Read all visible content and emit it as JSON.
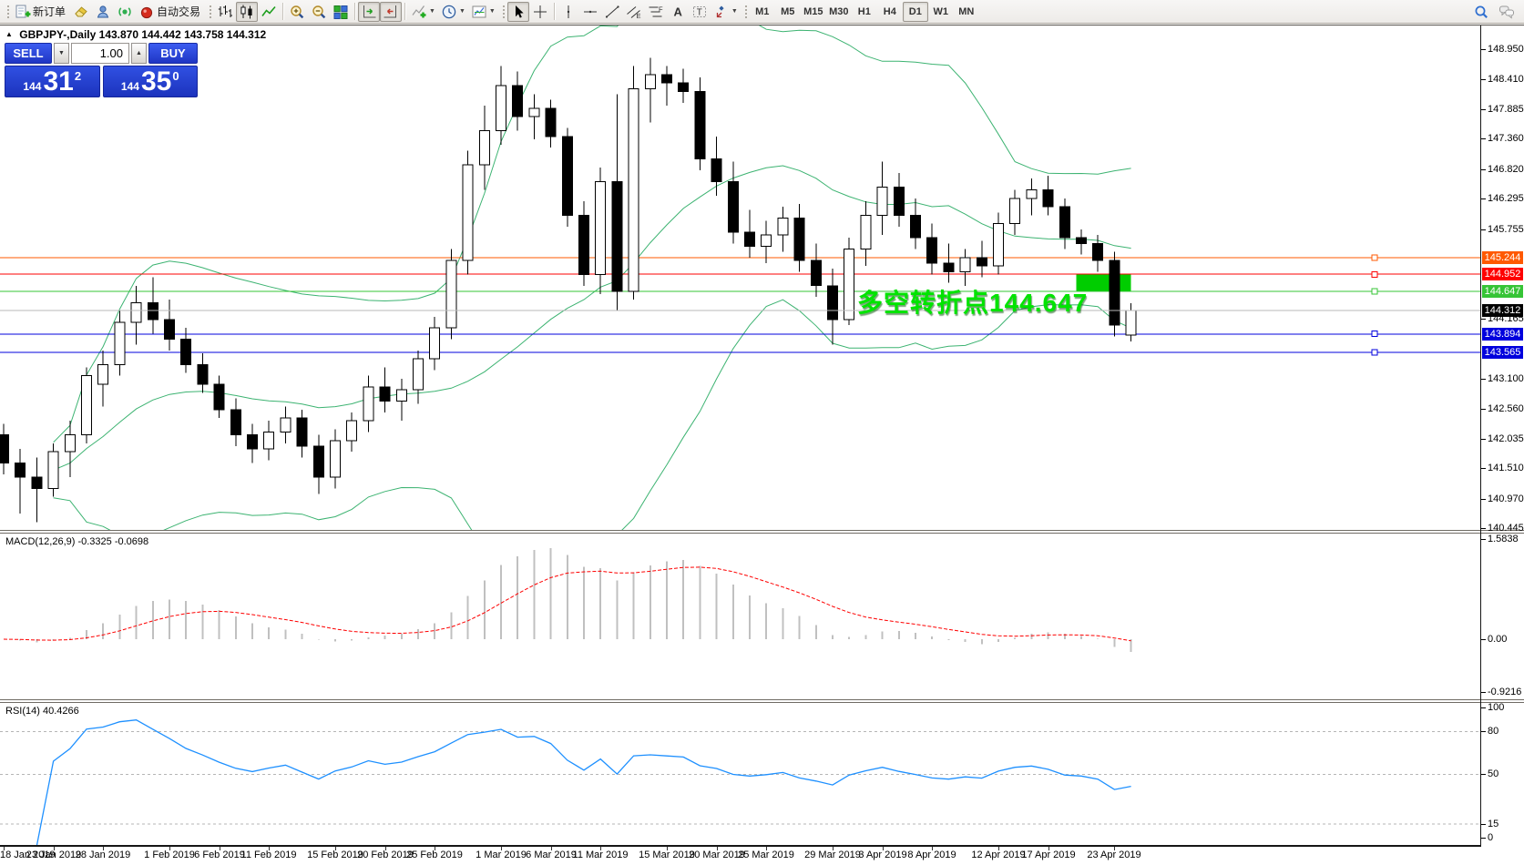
{
  "toolbar": {
    "groups": [
      {
        "grip": true,
        "items": [
          {
            "name": "new-order-button",
            "icon": "new-order",
            "label": "新订单"
          },
          {
            "name": "eraser-button",
            "icon": "eraser"
          },
          {
            "name": "profile-button",
            "icon": "profile"
          },
          {
            "name": "signals-button",
            "icon": "signal"
          },
          {
            "name": "auto-trading-button",
            "icon": "auto-trading",
            "label": "自动交易"
          }
        ]
      },
      {
        "grip": true,
        "items": [
          {
            "name": "bar-chart-button",
            "icon": "bar-chart"
          },
          {
            "name": "candlestick-chart-button",
            "icon": "candles",
            "pressed": true
          },
          {
            "name": "line-chart-button",
            "icon": "line"
          }
        ]
      },
      {
        "sep": true,
        "items": [
          {
            "name": "zoom-in-button",
            "icon": "zoom-in"
          },
          {
            "name": "zoom-out-button",
            "icon": "zoom-out"
          },
          {
            "name": "tile-windows-button",
            "icon": "tile"
          }
        ]
      },
      {
        "sep": true,
        "items": [
          {
            "name": "auto-scroll-button",
            "icon": "auto-scroll",
            "pressed": true
          },
          {
            "name": "chart-shift-button",
            "icon": "chart-shift",
            "pressed": true
          }
        ]
      },
      {
        "sep": true,
        "items": [
          {
            "name": "indicators-button",
            "icon": "indicators",
            "dropdown": true
          },
          {
            "name": "periods-button",
            "icon": "clock",
            "dropdown": true
          },
          {
            "name": "templates-button",
            "icon": "template",
            "dropdown": true
          }
        ]
      },
      {
        "grip": true,
        "items": [
          {
            "name": "cursor-button",
            "icon": "cursor",
            "pressed": true
          },
          {
            "name": "crosshair-button",
            "icon": "crosshair"
          }
        ]
      },
      {
        "sep": true,
        "items": [
          {
            "name": "vertical-line-button",
            "icon": "vline"
          },
          {
            "name": "horizontal-line-button",
            "icon": "hline"
          },
          {
            "name": "trendline-button",
            "icon": "trendline"
          },
          {
            "name": "equidistant-channel-button",
            "icon": "channel"
          },
          {
            "name": "fibonacci-button",
            "icon": "fibo"
          },
          {
            "name": "text-button",
            "icon": "text-a"
          },
          {
            "name": "text-label-button",
            "icon": "text-t"
          },
          {
            "name": "arrows-button",
            "icon": "arrows",
            "dropdown": true
          }
        ]
      },
      {
        "grip": true,
        "timeframes": true
      }
    ],
    "timeframes": [
      "M1",
      "M5",
      "M15",
      "M30",
      "H1",
      "H4",
      "D1",
      "W1",
      "MN"
    ],
    "active_timeframe": "D1",
    "right_items": [
      {
        "name": "search-button",
        "icon": "search"
      },
      {
        "name": "chat-button",
        "icon": "chat"
      }
    ]
  },
  "window": {
    "collapse_marker": "▲",
    "symbol_title": "GBPJPY-,Daily",
    "ohlc": "143.870 144.442 143.758 144.312"
  },
  "trade_panel": {
    "sell_label": "SELL",
    "buy_label": "BUY",
    "volume": "1.00",
    "sell_price": {
      "prefix": "144",
      "big": "31",
      "sup": "2"
    },
    "buy_price": {
      "prefix": "144",
      "big": "35",
      "sup": "0"
    }
  },
  "chart_data": {
    "type": "candlestick",
    "symbol": "GBPJPY-",
    "timeframe": "Daily",
    "ylim": [
      140.445,
      148.95
    ],
    "price_axis_ticks": [
      148.95,
      148.41,
      147.885,
      147.36,
      146.82,
      146.295,
      145.755,
      144.165,
      143.1,
      142.56,
      142.035,
      141.51,
      140.97,
      140.445
    ],
    "hlines": [
      {
        "price": 145.244,
        "label": "145.244",
        "color": "#ff5900"
      },
      {
        "price": 144.952,
        "label": "144.952",
        "color": "#fe0000"
      },
      {
        "price": 144.647,
        "label": "144.647",
        "color": "#36c436"
      },
      {
        "price": 143.894,
        "label": "143.894",
        "color": "#0000dd"
      },
      {
        "price": 143.565,
        "label": "143.565",
        "color": "#0000dd"
      }
    ],
    "current_price": {
      "value": 144.312,
      "label": "144.312",
      "line_color": "#b9b9b9",
      "label_bg": "#000000"
    },
    "rect_zone": {
      "bar_start": 65,
      "bar_end": 67.7,
      "price_top": 144.95,
      "price_bottom": 144.66,
      "color": "#00cd00"
    },
    "annotation": {
      "text": "多空转折点144.647",
      "color": "#00e400"
    },
    "bollinger": {
      "period": 20,
      "deviation": 2,
      "color": "#3cb371"
    },
    "candles": [
      [
        "18 Jan 2019",
        142.1,
        142.3,
        141.4,
        141.6
      ],
      [
        "21 Jan 2019",
        141.6,
        141.85,
        140.7,
        141.35
      ],
      [
        "22 Jan 2019",
        141.35,
        141.7,
        140.55,
        141.15
      ],
      [
        "23 Jan 2019",
        141.15,
        141.95,
        141.0,
        141.8
      ],
      [
        "24 Jan 2019",
        141.8,
        142.35,
        141.35,
        142.1
      ],
      [
        "25 Jan 2019",
        142.1,
        143.3,
        141.95,
        143.15
      ],
      [
        "28 Jan 2019",
        143.0,
        143.6,
        142.6,
        143.35
      ],
      [
        "29 Jan 2019",
        143.35,
        144.3,
        143.15,
        144.1
      ],
      [
        "30 Jan 2019",
        144.1,
        144.75,
        143.7,
        144.45
      ],
      [
        "31 Jan 2019",
        144.45,
        144.9,
        143.9,
        144.15
      ],
      [
        "1 Feb 2019",
        144.15,
        144.5,
        143.6,
        143.8
      ],
      [
        "4 Feb 2019",
        143.8,
        144.0,
        143.2,
        143.35
      ],
      [
        "5 Feb 2019",
        143.35,
        143.55,
        142.85,
        143.0
      ],
      [
        "6 Feb 2019",
        143.0,
        143.15,
        142.4,
        142.55
      ],
      [
        "7 Feb 2019",
        142.55,
        142.75,
        141.9,
        142.1
      ],
      [
        "8 Feb 2019",
        142.1,
        142.3,
        141.6,
        141.85
      ],
      [
        "11 Feb 2019",
        141.85,
        142.35,
        141.65,
        142.15
      ],
      [
        "12 Feb 2019",
        142.15,
        142.6,
        141.95,
        142.4
      ],
      [
        "13 Feb 2019",
        142.4,
        142.55,
        141.7,
        141.9
      ],
      [
        "14 Feb 2019",
        141.9,
        142.1,
        141.05,
        141.35
      ],
      [
        "15 Feb 2019",
        141.35,
        142.2,
        141.15,
        142.0
      ],
      [
        "18 Feb 2019",
        142.0,
        142.5,
        141.8,
        142.35
      ],
      [
        "19 Feb 2019",
        142.35,
        143.15,
        142.15,
        142.95
      ],
      [
        "20 Feb 2019",
        142.95,
        143.3,
        142.5,
        142.7
      ],
      [
        "21 Feb 2019",
        142.7,
        143.1,
        142.35,
        142.9
      ],
      [
        "22 Feb 2019",
        142.9,
        143.6,
        142.65,
        143.45
      ],
      [
        "25 Feb 2019",
        143.45,
        144.2,
        143.25,
        144.0
      ],
      [
        "26 Feb 2019",
        144.0,
        145.4,
        143.8,
        145.2
      ],
      [
        "27 Feb 2019",
        145.2,
        147.15,
        144.95,
        146.9
      ],
      [
        "28 Feb 2019",
        146.9,
        147.95,
        146.45,
        147.5
      ],
      [
        "1 Mar 2019",
        147.5,
        148.65,
        147.25,
        148.3
      ],
      [
        "4 Mar 2019",
        148.3,
        148.55,
        147.5,
        147.75
      ],
      [
        "5 Mar 2019",
        147.75,
        148.15,
        147.35,
        147.9
      ],
      [
        "6 Mar 2019",
        147.9,
        148.05,
        147.2,
        147.4
      ],
      [
        "7 Mar 2019",
        147.4,
        147.55,
        145.8,
        146.0
      ],
      [
        "8 Mar 2019",
        146.0,
        146.25,
        144.75,
        144.95
      ],
      [
        "11 Mar 2019",
        144.95,
        146.85,
        144.6,
        146.6
      ],
      [
        "12 Mar 2019",
        146.6,
        148.15,
        144.3,
        144.65
      ],
      [
        "13 Mar 2019",
        144.65,
        148.65,
        144.5,
        148.25
      ],
      [
        "14 Mar 2019",
        148.25,
        148.8,
        147.65,
        148.5
      ],
      [
        "15 Mar 2019",
        148.5,
        148.65,
        147.95,
        148.35
      ],
      [
        "18 Mar 2019",
        148.35,
        148.6,
        148.0,
        148.2
      ],
      [
        "19 Mar 2019",
        148.2,
        148.45,
        146.8,
        147.0
      ],
      [
        "20 Mar 2019",
        147.0,
        147.4,
        146.35,
        146.6
      ],
      [
        "21 Mar 2019",
        146.6,
        146.95,
        145.5,
        145.7
      ],
      [
        "22 Mar 2019",
        145.7,
        146.1,
        145.25,
        145.45
      ],
      [
        "25 Mar 2019",
        145.45,
        145.9,
        145.15,
        145.65
      ],
      [
        "26 Mar 2019",
        145.65,
        146.15,
        145.35,
        145.95
      ],
      [
        "27 Mar 2019",
        145.95,
        146.2,
        145.0,
        145.2
      ],
      [
        "28 Mar 2019",
        145.2,
        145.5,
        144.55,
        144.75
      ],
      [
        "29 Mar 2019",
        144.75,
        145.05,
        143.7,
        144.15
      ],
      [
        "1 Apr 2019",
        144.15,
        145.6,
        144.05,
        145.4
      ],
      [
        "2 Apr 2019",
        145.4,
        146.25,
        145.1,
        146.0
      ],
      [
        "3 Apr 2019",
        146.0,
        146.95,
        145.65,
        146.5
      ],
      [
        "4 Apr 2019",
        146.5,
        146.75,
        145.8,
        146.0
      ],
      [
        "5 Apr 2019",
        146.0,
        146.3,
        145.4,
        145.6
      ],
      [
        "8 Apr 2019",
        145.6,
        145.85,
        144.95,
        145.15
      ],
      [
        "9 Apr 2019",
        145.15,
        145.5,
        144.8,
        145.0
      ],
      [
        "10 Apr 2019",
        145.0,
        145.4,
        144.75,
        145.25
      ],
      [
        "11 Apr 2019",
        145.25,
        145.55,
        144.9,
        145.1
      ],
      [
        "12 Apr 2019",
        145.1,
        146.05,
        144.95,
        145.85
      ],
      [
        "15 Apr 2019",
        145.85,
        146.45,
        145.65,
        146.3
      ],
      [
        "16 Apr 2019",
        146.3,
        146.65,
        146.0,
        146.45
      ],
      [
        "17 Apr 2019",
        146.45,
        146.7,
        146.0,
        146.15
      ],
      [
        "18 Apr 2019",
        146.15,
        146.3,
        145.4,
        145.6
      ],
      [
        "19 Apr 2019",
        145.6,
        145.75,
        145.3,
        145.5
      ],
      [
        "22 Apr 2019",
        145.5,
        145.65,
        145.0,
        145.2
      ],
      [
        "23 Apr 2019",
        145.2,
        145.35,
        143.85,
        144.05
      ],
      [
        "24 Apr 2019",
        143.87,
        144.44,
        143.76,
        144.31
      ]
    ],
    "date_ticks": [
      {
        "label": "18 Jan 2019",
        "bar": 0
      },
      {
        "label": "23 Jan 2019",
        "bar": 3
      },
      {
        "label": "28 Jan 2019",
        "bar": 6
      },
      {
        "label": "1 Feb 2019",
        "bar": 10
      },
      {
        "label": "6 Feb 2019",
        "bar": 13
      },
      {
        "label": "11 Feb 2019",
        "bar": 16
      },
      {
        "label": "15 Feb 2019",
        "bar": 20
      },
      {
        "label": "20 Feb 2019",
        "bar": 23
      },
      {
        "label": "25 Feb 2019",
        "bar": 26
      },
      {
        "label": "1 Mar 2019",
        "bar": 30
      },
      {
        "label": "6 Mar 2019",
        "bar": 33
      },
      {
        "label": "11 Mar 2019",
        "bar": 36
      },
      {
        "label": "15 Mar 2019",
        "bar": 40
      },
      {
        "label": "20 Mar 2019",
        "bar": 43
      },
      {
        "label": "25 Mar 2019",
        "bar": 46
      },
      {
        "label": "29 Mar 2019",
        "bar": 50
      },
      {
        "label": "3 Apr 2019",
        "bar": 53
      },
      {
        "label": "8 Apr 2019",
        "bar": 56
      },
      {
        "label": "12 Apr 2019",
        "bar": 60
      },
      {
        "label": "17 Apr 2019",
        "bar": 63
      },
      {
        "label": "23 Apr 2019",
        "bar": 67
      }
    ],
    "macd": {
      "label": "MACD(12,26,9) -0.3325 -0.0698",
      "params": [
        12,
        26,
        9
      ],
      "axis_labels": [
        "1.5838",
        "0.00",
        "-0.9216"
      ],
      "hist_color": "#c0c0c0",
      "signal_color": "#fe0000"
    },
    "rsi": {
      "label": "RSI(14) 40.4266",
      "period": 14,
      "levels": [
        80,
        50,
        15
      ],
      "axis_labels": [
        "100",
        "80",
        "50",
        "15",
        "0"
      ],
      "color": "#1e90ff"
    }
  }
}
